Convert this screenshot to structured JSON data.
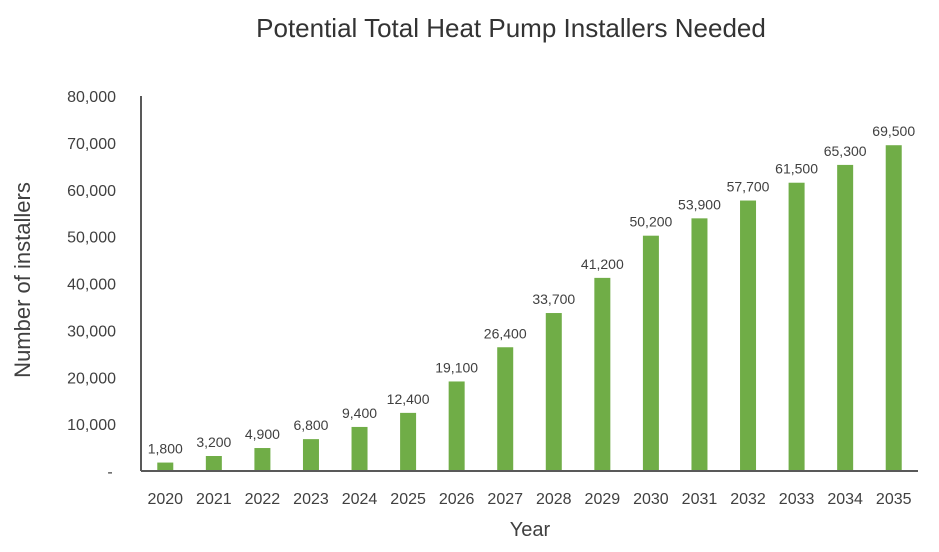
{
  "chart_data": {
    "type": "bar",
    "title": "Potential Total Heat Pump Installers Needed",
    "xlabel": "Year",
    "ylabel": "Number of installers",
    "categories": [
      "2020",
      "2021",
      "2022",
      "2023",
      "2024",
      "2025",
      "2026",
      "2027",
      "2028",
      "2029",
      "2030",
      "2031",
      "2032",
      "2033",
      "2034",
      "2035"
    ],
    "values": [
      1800,
      3200,
      4900,
      6800,
      9400,
      12400,
      19100,
      26400,
      33700,
      41200,
      50200,
      53900,
      57700,
      61500,
      65300,
      69500
    ],
    "value_labels": [
      "1,800",
      "3,200",
      "4,900",
      "6,800",
      "9,400",
      "12,400",
      "19,100",
      "26,400",
      "33,700",
      "41,200",
      "50,200",
      "53,900",
      "57,700",
      "61,500",
      "65,300",
      "69,500"
    ],
    "ylim": [
      0,
      80000
    ],
    "y_ticks": [
      0,
      10000,
      20000,
      30000,
      40000,
      50000,
      60000,
      70000,
      80000
    ],
    "y_tick_labels": [
      "-",
      "10,000",
      "20,000",
      "30,000",
      "40,000",
      "50,000",
      "60,000",
      "70,000",
      "80,000"
    ],
    "grid": false,
    "legend": "none",
    "bar_color": "#70AD47"
  }
}
